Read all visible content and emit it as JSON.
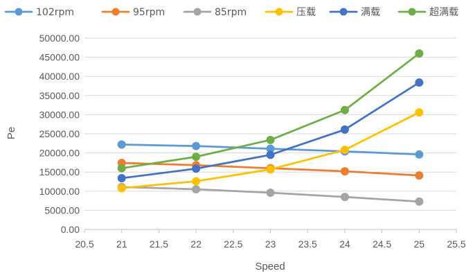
{
  "chart_data": {
    "type": "scatter",
    "title": "",
    "xlabel": "Speed",
    "ylabel": "Pe",
    "xlim": [
      20.5,
      25.5
    ],
    "ylim": [
      0,
      50000
    ],
    "x_ticks": [
      "20.5",
      "21",
      "21.5",
      "22",
      "22.5",
      "23",
      "23.5",
      "24",
      "24.5",
      "25",
      "25.5"
    ],
    "y_ticks": [
      "0.00",
      "5000.00",
      "10000.00",
      "15000.00",
      "20000.00",
      "25000.00",
      "30000.00",
      "35000.00",
      "40000.00",
      "45000.00",
      "50000.00"
    ],
    "grid": "horizontal",
    "legend_position": "top",
    "series": [
      {
        "name": "102rpm",
        "color": "#5B9BD5",
        "x": [
          21,
          22,
          23,
          24,
          25
        ],
        "y": [
          22200,
          21800,
          21100,
          20400,
          19600
        ]
      },
      {
        "name": "95rpm",
        "color": "#ED7D31",
        "x": [
          21,
          22,
          23,
          24,
          25
        ],
        "y": [
          17400,
          16800,
          16000,
          15200,
          14100
        ]
      },
      {
        "name": "85rpm",
        "color": "#A5A5A5",
        "x": [
          21,
          22,
          23,
          24,
          25
        ],
        "y": [
          11100,
          10500,
          9600,
          8500,
          7300
        ]
      },
      {
        "name": "压载",
        "color": "#FFC000",
        "x": [
          21,
          22,
          23,
          24,
          25
        ],
        "y": [
          10800,
          12600,
          15700,
          20800,
          30600
        ]
      },
      {
        "name": "满载",
        "color": "#4472C4",
        "x": [
          21,
          22,
          23,
          24,
          25
        ],
        "y": [
          13400,
          15900,
          19500,
          26100,
          38400
        ]
      },
      {
        "name": "超满载",
        "color": "#70AD47",
        "x": [
          21,
          22,
          23,
          24,
          25
        ],
        "y": [
          16000,
          19000,
          23400,
          31200,
          46000
        ]
      }
    ]
  }
}
